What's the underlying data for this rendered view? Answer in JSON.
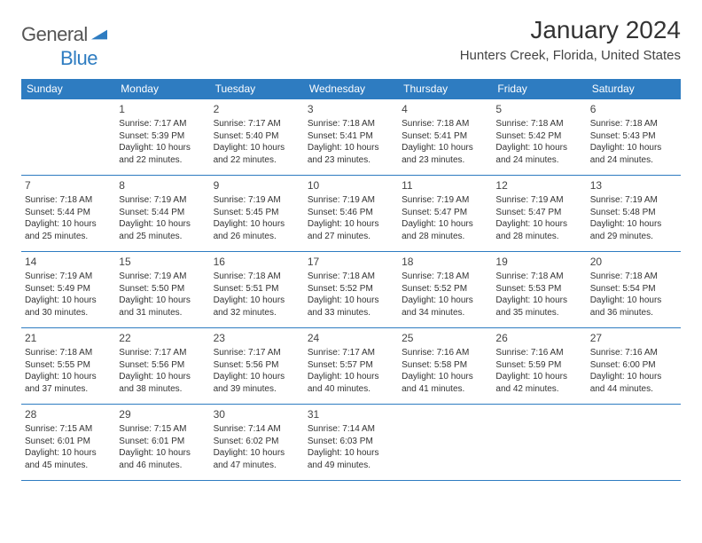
{
  "brand": {
    "general": "General",
    "blue": "Blue"
  },
  "title": "January 2024",
  "location": "Hunters Creek, Florida, United States",
  "day_headers": [
    "Sunday",
    "Monday",
    "Tuesday",
    "Wednesday",
    "Thursday",
    "Friday",
    "Saturday"
  ],
  "colors": {
    "header_bg": "#2e7cc1",
    "header_fg": "#ffffff",
    "rule": "#2e7cc1",
    "text": "#333333"
  },
  "weeks": [
    [
      null,
      {
        "n": "1",
        "sr": "Sunrise: 7:17 AM",
        "ss": "Sunset: 5:39 PM",
        "d1": "Daylight: 10 hours",
        "d2": "and 22 minutes."
      },
      {
        "n": "2",
        "sr": "Sunrise: 7:17 AM",
        "ss": "Sunset: 5:40 PM",
        "d1": "Daylight: 10 hours",
        "d2": "and 22 minutes."
      },
      {
        "n": "3",
        "sr": "Sunrise: 7:18 AM",
        "ss": "Sunset: 5:41 PM",
        "d1": "Daylight: 10 hours",
        "d2": "and 23 minutes."
      },
      {
        "n": "4",
        "sr": "Sunrise: 7:18 AM",
        "ss": "Sunset: 5:41 PM",
        "d1": "Daylight: 10 hours",
        "d2": "and 23 minutes."
      },
      {
        "n": "5",
        "sr": "Sunrise: 7:18 AM",
        "ss": "Sunset: 5:42 PM",
        "d1": "Daylight: 10 hours",
        "d2": "and 24 minutes."
      },
      {
        "n": "6",
        "sr": "Sunrise: 7:18 AM",
        "ss": "Sunset: 5:43 PM",
        "d1": "Daylight: 10 hours",
        "d2": "and 24 minutes."
      }
    ],
    [
      {
        "n": "7",
        "sr": "Sunrise: 7:18 AM",
        "ss": "Sunset: 5:44 PM",
        "d1": "Daylight: 10 hours",
        "d2": "and 25 minutes."
      },
      {
        "n": "8",
        "sr": "Sunrise: 7:19 AM",
        "ss": "Sunset: 5:44 PM",
        "d1": "Daylight: 10 hours",
        "d2": "and 25 minutes."
      },
      {
        "n": "9",
        "sr": "Sunrise: 7:19 AM",
        "ss": "Sunset: 5:45 PM",
        "d1": "Daylight: 10 hours",
        "d2": "and 26 minutes."
      },
      {
        "n": "10",
        "sr": "Sunrise: 7:19 AM",
        "ss": "Sunset: 5:46 PM",
        "d1": "Daylight: 10 hours",
        "d2": "and 27 minutes."
      },
      {
        "n": "11",
        "sr": "Sunrise: 7:19 AM",
        "ss": "Sunset: 5:47 PM",
        "d1": "Daylight: 10 hours",
        "d2": "and 28 minutes."
      },
      {
        "n": "12",
        "sr": "Sunrise: 7:19 AM",
        "ss": "Sunset: 5:47 PM",
        "d1": "Daylight: 10 hours",
        "d2": "and 28 minutes."
      },
      {
        "n": "13",
        "sr": "Sunrise: 7:19 AM",
        "ss": "Sunset: 5:48 PM",
        "d1": "Daylight: 10 hours",
        "d2": "and 29 minutes."
      }
    ],
    [
      {
        "n": "14",
        "sr": "Sunrise: 7:19 AM",
        "ss": "Sunset: 5:49 PM",
        "d1": "Daylight: 10 hours",
        "d2": "and 30 minutes."
      },
      {
        "n": "15",
        "sr": "Sunrise: 7:19 AM",
        "ss": "Sunset: 5:50 PM",
        "d1": "Daylight: 10 hours",
        "d2": "and 31 minutes."
      },
      {
        "n": "16",
        "sr": "Sunrise: 7:18 AM",
        "ss": "Sunset: 5:51 PM",
        "d1": "Daylight: 10 hours",
        "d2": "and 32 minutes."
      },
      {
        "n": "17",
        "sr": "Sunrise: 7:18 AM",
        "ss": "Sunset: 5:52 PM",
        "d1": "Daylight: 10 hours",
        "d2": "and 33 minutes."
      },
      {
        "n": "18",
        "sr": "Sunrise: 7:18 AM",
        "ss": "Sunset: 5:52 PM",
        "d1": "Daylight: 10 hours",
        "d2": "and 34 minutes."
      },
      {
        "n": "19",
        "sr": "Sunrise: 7:18 AM",
        "ss": "Sunset: 5:53 PM",
        "d1": "Daylight: 10 hours",
        "d2": "and 35 minutes."
      },
      {
        "n": "20",
        "sr": "Sunrise: 7:18 AM",
        "ss": "Sunset: 5:54 PM",
        "d1": "Daylight: 10 hours",
        "d2": "and 36 minutes."
      }
    ],
    [
      {
        "n": "21",
        "sr": "Sunrise: 7:18 AM",
        "ss": "Sunset: 5:55 PM",
        "d1": "Daylight: 10 hours",
        "d2": "and 37 minutes."
      },
      {
        "n": "22",
        "sr": "Sunrise: 7:17 AM",
        "ss": "Sunset: 5:56 PM",
        "d1": "Daylight: 10 hours",
        "d2": "and 38 minutes."
      },
      {
        "n": "23",
        "sr": "Sunrise: 7:17 AM",
        "ss": "Sunset: 5:56 PM",
        "d1": "Daylight: 10 hours",
        "d2": "and 39 minutes."
      },
      {
        "n": "24",
        "sr": "Sunrise: 7:17 AM",
        "ss": "Sunset: 5:57 PM",
        "d1": "Daylight: 10 hours",
        "d2": "and 40 minutes."
      },
      {
        "n": "25",
        "sr": "Sunrise: 7:16 AM",
        "ss": "Sunset: 5:58 PM",
        "d1": "Daylight: 10 hours",
        "d2": "and 41 minutes."
      },
      {
        "n": "26",
        "sr": "Sunrise: 7:16 AM",
        "ss": "Sunset: 5:59 PM",
        "d1": "Daylight: 10 hours",
        "d2": "and 42 minutes."
      },
      {
        "n": "27",
        "sr": "Sunrise: 7:16 AM",
        "ss": "Sunset: 6:00 PM",
        "d1": "Daylight: 10 hours",
        "d2": "and 44 minutes."
      }
    ],
    [
      {
        "n": "28",
        "sr": "Sunrise: 7:15 AM",
        "ss": "Sunset: 6:01 PM",
        "d1": "Daylight: 10 hours",
        "d2": "and 45 minutes."
      },
      {
        "n": "29",
        "sr": "Sunrise: 7:15 AM",
        "ss": "Sunset: 6:01 PM",
        "d1": "Daylight: 10 hours",
        "d2": "and 46 minutes."
      },
      {
        "n": "30",
        "sr": "Sunrise: 7:14 AM",
        "ss": "Sunset: 6:02 PM",
        "d1": "Daylight: 10 hours",
        "d2": "and 47 minutes."
      },
      {
        "n": "31",
        "sr": "Sunrise: 7:14 AM",
        "ss": "Sunset: 6:03 PM",
        "d1": "Daylight: 10 hours",
        "d2": "and 49 minutes."
      },
      null,
      null,
      null
    ]
  ]
}
